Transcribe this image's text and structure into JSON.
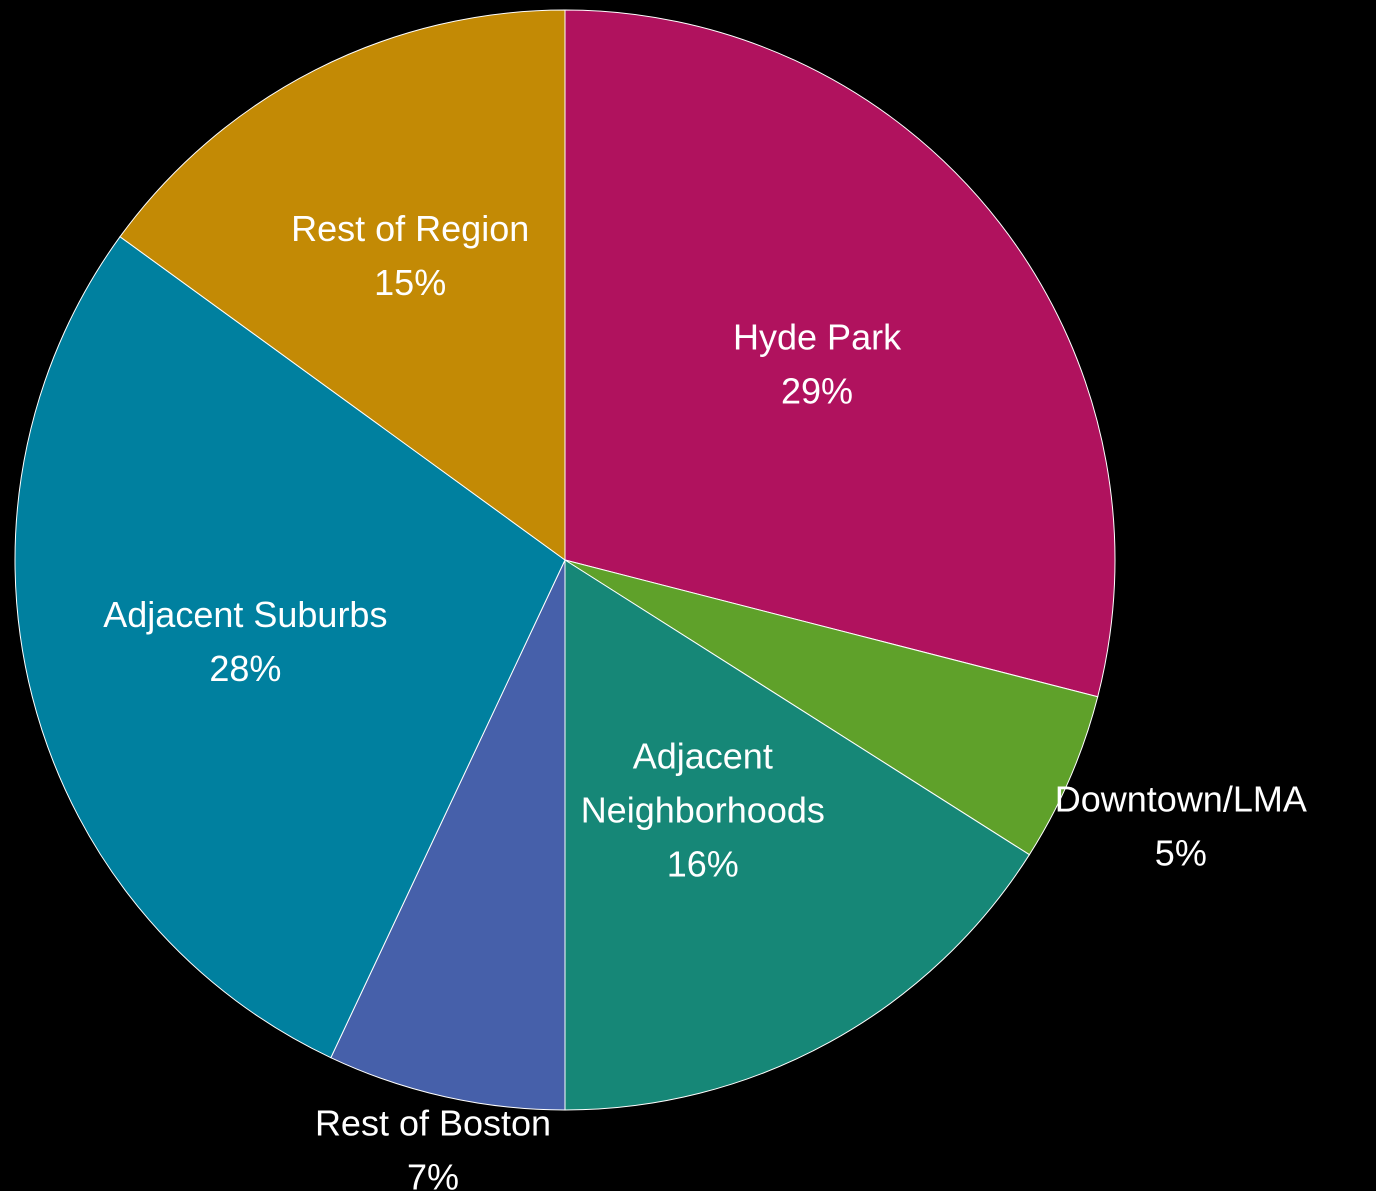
{
  "chart_data": {
    "type": "pie",
    "title": "",
    "legend": "none",
    "slices": [
      {
        "category": "Hyde Park",
        "value": 29,
        "label": "29%",
        "color": "#B0125E"
      },
      {
        "category": "Downtown/LMA",
        "value": 5,
        "label": "5%",
        "color": "#5FA12A"
      },
      {
        "category": "Adjacent Neighborhoods",
        "value": 16,
        "label": "16%",
        "color": "#168777"
      },
      {
        "category": "Rest of Boston",
        "value": 7,
        "label": "7%",
        "color": "#4660AA"
      },
      {
        "category": "Adjacent Suburbs",
        "value": 28,
        "label": "28%",
        "color": "#00809F"
      },
      {
        "category": "Rest of Region",
        "value": 15,
        "label": "15%",
        "color": "#C38A05"
      }
    ]
  }
}
